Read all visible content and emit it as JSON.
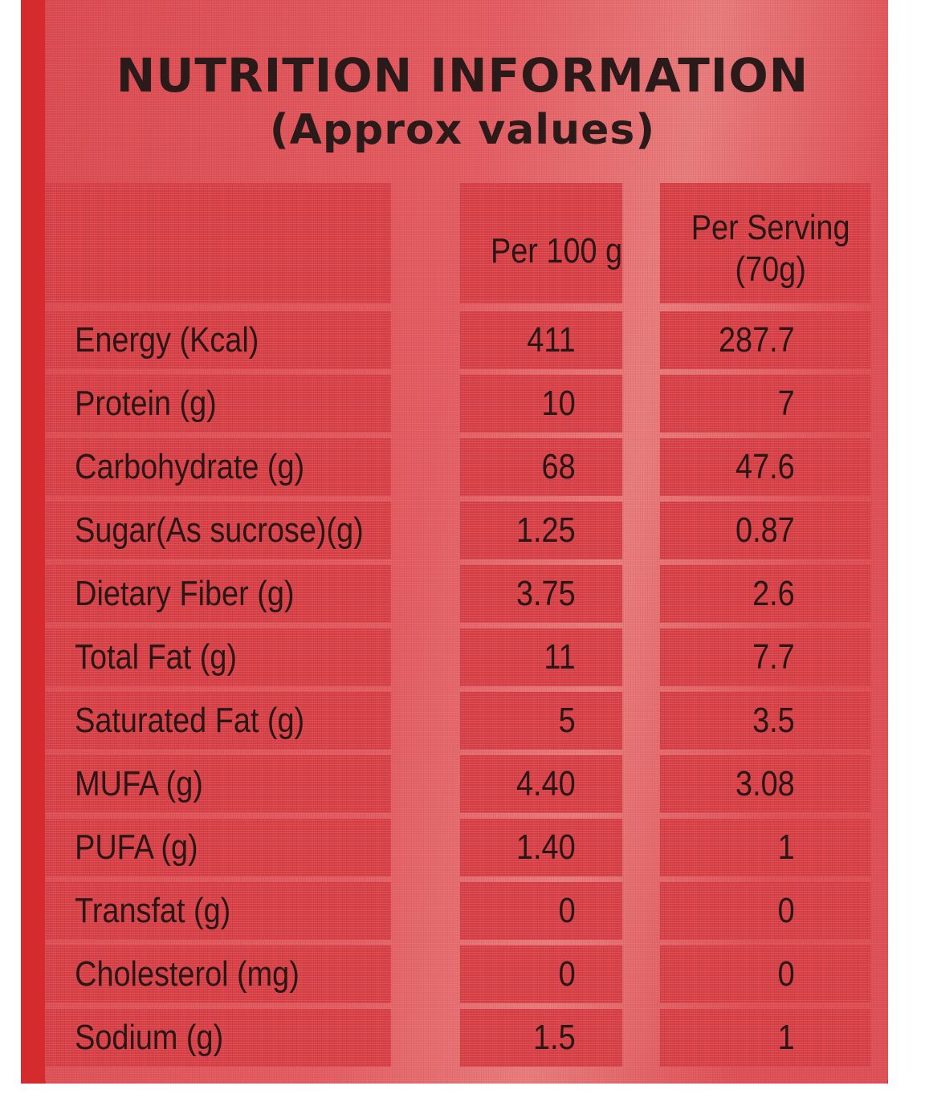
{
  "title": "NUTRITION INFORMATION",
  "subtitle": "(Approx values)",
  "columns": {
    "per100": "Per 100 g",
    "perServing_line1": "Per Serving",
    "perServing_line2": "(70g)"
  },
  "rows": [
    {
      "name": "Energy (Kcal)",
      "per100": "411",
      "perServing": "287.7"
    },
    {
      "name": "Protein (g)",
      "per100": "10",
      "perServing": "7"
    },
    {
      "name": "Carbohydrate (g)",
      "per100": "68",
      "perServing": "47.6"
    },
    {
      "name": "Sugar(As sucrose)(g)",
      "per100": "1.25",
      "perServing": "0.87"
    },
    {
      "name": "Dietary Fiber (g)",
      "per100": "3.75",
      "perServing": "2.6"
    },
    {
      "name": "Total Fat (g)",
      "per100": "11",
      "perServing": "7.7"
    },
    {
      "name": "Saturated Fat (g)",
      "per100": "5",
      "perServing": "3.5"
    },
    {
      "name": "MUFA (g)",
      "per100": "4.40",
      "perServing": "3.08"
    },
    {
      "name": "PUFA (g)",
      "per100": "1.40",
      "perServing": "1"
    },
    {
      "name": "Transfat (g)",
      "per100": "0",
      "perServing": "0"
    },
    {
      "name": "Cholesterol (mg)",
      "per100": "0",
      "perServing": "0"
    },
    {
      "name": "Sodium (g)",
      "per100": "1.5",
      "perServing": "1"
    }
  ]
}
